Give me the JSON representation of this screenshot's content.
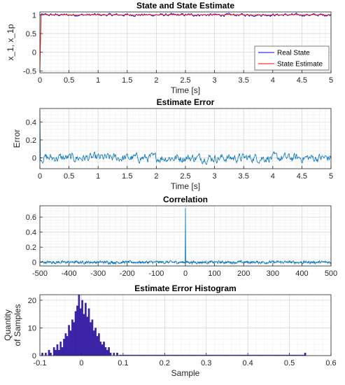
{
  "chart_data": [
    {
      "type": "line",
      "title": "State and State Estimate",
      "xlabel": "Time [s]",
      "ylabel": "x_1, x_1p",
      "xlim": [
        0,
        5
      ],
      "ylim": [
        -0.55,
        1.08
      ],
      "xticks": [
        0,
        0.5,
        1,
        1.5,
        2,
        2.5,
        3,
        3.5,
        4,
        4.5,
        5
      ],
      "xtick_labels": [
        "0",
        "0.5",
        "1",
        "1.5",
        "2",
        "2.5",
        "3",
        "3.5",
        "4",
        "4.5",
        "5"
      ],
      "yticks": [
        -0.5,
        0,
        0.5,
        1
      ],
      "ytick_labels": [
        "-0.5",
        "0",
        "0.5",
        "1"
      ],
      "grid": true,
      "legend_position": "lower-right",
      "series": [
        {
          "name": "Real State",
          "color": "#0000ff",
          "description_values": {
            "steady_mean": 1.0,
            "noise_amplitude": 0.03
          }
        },
        {
          "name": "State Estimate",
          "color": "#ff0000",
          "description_values": {
            "start": -0.5,
            "settle_time": 0.02,
            "steady_value": 1.0
          }
        }
      ]
    },
    {
      "type": "line",
      "title": "Estimate Error",
      "xlabel": "Time [s]",
      "ylabel": "Error",
      "xlim": [
        0,
        5
      ],
      "ylim": [
        -0.12,
        0.55
      ],
      "xticks": [
        0,
        0.5,
        1,
        1.5,
        2,
        2.5,
        3,
        3.5,
        4,
        4.5,
        5
      ],
      "xtick_labels": [
        "0",
        "0.5",
        "1",
        "1.5",
        "2",
        "2.5",
        "3",
        "3.5",
        "4",
        "4.5",
        "5"
      ],
      "yticks": [
        0,
        0.2,
        0.4
      ],
      "ytick_labels": [
        "0",
        "0.2",
        "0.4"
      ],
      "grid": true,
      "series": [
        {
          "color": "#0072bd",
          "description_values": {
            "initial_spike": 0.53,
            "mean": 0.0,
            "noise_amplitude": 0.04
          }
        }
      ]
    },
    {
      "type": "line",
      "title": "Correlation",
      "xlabel": "",
      "ylabel": "",
      "xlim": [
        -500,
        500
      ],
      "ylim": [
        -0.05,
        0.75
      ],
      "xticks": [
        -500,
        -400,
        -300,
        -200,
        -100,
        0,
        100,
        200,
        300,
        400,
        500
      ],
      "xtick_labels": [
        "-500",
        "-400",
        "-300",
        "-200",
        "-100",
        "0",
        "100",
        "200",
        "300",
        "400",
        "500"
      ],
      "yticks": [
        0,
        0.2,
        0.4,
        0.6
      ],
      "ytick_labels": [
        "0",
        "0.2",
        "0.4",
        "0.6"
      ],
      "grid": true,
      "series": [
        {
          "color": "#0072bd",
          "description_values": {
            "peak_at_lag_0": 0.72,
            "noise_amplitude": 0.015
          }
        }
      ]
    },
    {
      "type": "bar",
      "title": "Estimate Error Histogram",
      "xlabel": "Sample",
      "ylabel": "Quantity of Samples",
      "ylabel_lines": [
        "Quantity",
        "of Samples"
      ],
      "xlim": [
        -0.1,
        0.6
      ],
      "ylim": [
        0,
        22
      ],
      "xticks": [
        -0.1,
        0,
        0.1,
        0.2,
        0.3,
        0.4,
        0.5,
        0.6
      ],
      "xtick_labels": [
        "-0.1",
        "0",
        "0.1",
        "0.2",
        "0.3",
        "0.4",
        "0.5",
        "0.6"
      ],
      "yticks": [
        0,
        10,
        20
      ],
      "ytick_labels": [
        "0",
        "10",
        "20"
      ],
      "grid": true,
      "bin_width": 0.004,
      "bar_color": "#3a23a6",
      "bins": [
        {
          "x": -0.094,
          "count": 1
        },
        {
          "x": -0.086,
          "count": 1
        },
        {
          "x": -0.078,
          "count": 2
        },
        {
          "x": -0.074,
          "count": 1
        },
        {
          "x": -0.066,
          "count": 3
        },
        {
          "x": -0.062,
          "count": 2
        },
        {
          "x": -0.058,
          "count": 4
        },
        {
          "x": -0.054,
          "count": 2
        },
        {
          "x": -0.05,
          "count": 5
        },
        {
          "x": -0.046,
          "count": 3
        },
        {
          "x": -0.042,
          "count": 6
        },
        {
          "x": -0.038,
          "count": 8
        },
        {
          "x": -0.034,
          "count": 7
        },
        {
          "x": -0.03,
          "count": 11
        },
        {
          "x": -0.026,
          "count": 9
        },
        {
          "x": -0.022,
          "count": 13
        },
        {
          "x": -0.018,
          "count": 12
        },
        {
          "x": -0.014,
          "count": 16
        },
        {
          "x": -0.01,
          "count": 18
        },
        {
          "x": -0.006,
          "count": 22
        },
        {
          "x": -0.002,
          "count": 17
        },
        {
          "x": 0.002,
          "count": 20
        },
        {
          "x": 0.006,
          "count": 15
        },
        {
          "x": 0.01,
          "count": 19
        },
        {
          "x": 0.014,
          "count": 14
        },
        {
          "x": 0.018,
          "count": 17
        },
        {
          "x": 0.022,
          "count": 12
        },
        {
          "x": 0.026,
          "count": 13
        },
        {
          "x": 0.03,
          "count": 9
        },
        {
          "x": 0.034,
          "count": 10
        },
        {
          "x": 0.038,
          "count": 7
        },
        {
          "x": 0.042,
          "count": 8
        },
        {
          "x": 0.046,
          "count": 5
        },
        {
          "x": 0.05,
          "count": 4
        },
        {
          "x": 0.054,
          "count": 5
        },
        {
          "x": 0.058,
          "count": 3
        },
        {
          "x": 0.062,
          "count": 2
        },
        {
          "x": 0.066,
          "count": 3
        },
        {
          "x": 0.07,
          "count": 1
        },
        {
          "x": 0.078,
          "count": 1
        },
        {
          "x": 0.086,
          "count": 1
        },
        {
          "x": 0.538,
          "count": 1
        }
      ]
    }
  ]
}
